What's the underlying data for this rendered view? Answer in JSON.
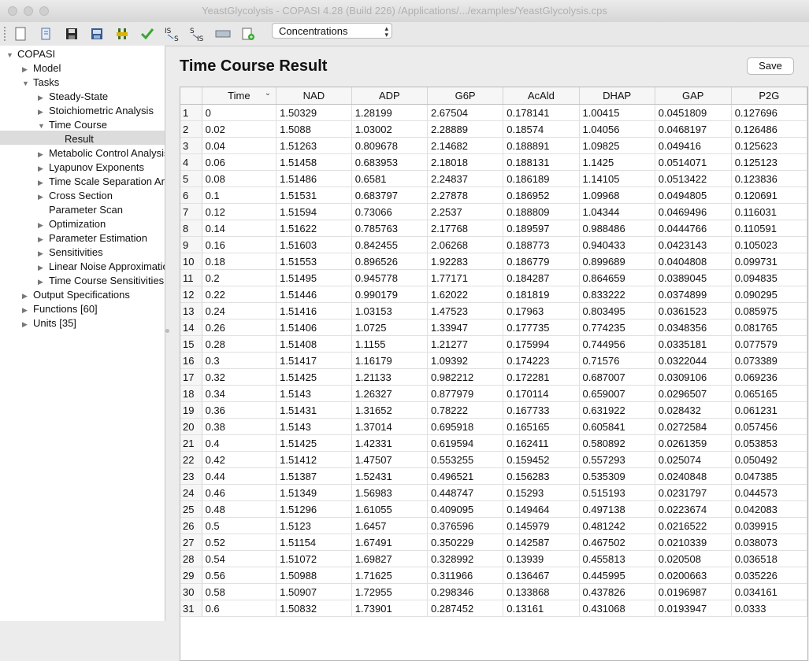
{
  "window": {
    "title": "YeastGlycolysis - COPASI 4.28 (Build 226) /Applications/.../examples/YeastGlycolysis.cps"
  },
  "toolbar": {
    "icons": [
      "new-file-icon",
      "open-file-icon",
      "save-icon",
      "save-as-icon",
      "sliders-icon",
      "check-icon",
      "is-to-s-icon",
      "s-to-is-icon",
      "unit-icon",
      "add-report-icon"
    ],
    "mode_select": "Concentrations"
  },
  "sidebar": {
    "items": [
      {
        "label": "COPASI",
        "level": 0,
        "arrow": "down"
      },
      {
        "label": "Model",
        "level": 1,
        "arrow": "right"
      },
      {
        "label": "Tasks",
        "level": 1,
        "arrow": "down"
      },
      {
        "label": "Steady-State",
        "level": 2,
        "arrow": "right"
      },
      {
        "label": "Stoichiometric Analysis",
        "level": 2,
        "arrow": "right"
      },
      {
        "label": "Time Course",
        "level": 2,
        "arrow": "down"
      },
      {
        "label": "Result",
        "level": 3,
        "arrow": "none",
        "selected": true
      },
      {
        "label": "Metabolic Control Analysis",
        "level": 2,
        "arrow": "right"
      },
      {
        "label": "Lyapunov Exponents",
        "level": 2,
        "arrow": "right"
      },
      {
        "label": "Time Scale Separation Analysis",
        "level": 2,
        "arrow": "right"
      },
      {
        "label": "Cross Section",
        "level": 2,
        "arrow": "right"
      },
      {
        "label": "Parameter Scan",
        "level": 2,
        "arrow": "none"
      },
      {
        "label": "Optimization",
        "level": 2,
        "arrow": "right"
      },
      {
        "label": "Parameter Estimation",
        "level": 2,
        "arrow": "right"
      },
      {
        "label": "Sensitivities",
        "level": 2,
        "arrow": "right"
      },
      {
        "label": "Linear Noise Approximation",
        "level": 2,
        "arrow": "right"
      },
      {
        "label": "Time Course Sensitivities",
        "level": 2,
        "arrow": "right"
      },
      {
        "label": "Output Specifications",
        "level": 1,
        "arrow": "right"
      },
      {
        "label": "Functions [60]",
        "level": 1,
        "arrow": "right"
      },
      {
        "label": "Units [35]",
        "level": 1,
        "arrow": "right"
      }
    ]
  },
  "main": {
    "title": "Time Course Result",
    "save_label": "Save",
    "table": {
      "columns": [
        "Time",
        "NAD",
        "ADP",
        "G6P",
        "AcAld",
        "DHAP",
        "GAP",
        "P2G"
      ],
      "rows": [
        [
          "1",
          "0",
          "1.50329",
          "1.28199",
          "2.67504",
          "0.178141",
          "1.00415",
          "0.0451809",
          "0.127696"
        ],
        [
          "2",
          "0.02",
          "1.5088",
          "1.03002",
          "2.28889",
          "0.18574",
          "1.04056",
          "0.0468197",
          "0.126486"
        ],
        [
          "3",
          "0.04",
          "1.51263",
          "0.809678",
          "2.14682",
          "0.188891",
          "1.09825",
          "0.049416",
          "0.125623"
        ],
        [
          "4",
          "0.06",
          "1.51458",
          "0.683953",
          "2.18018",
          "0.188131",
          "1.1425",
          "0.0514071",
          "0.125123"
        ],
        [
          "5",
          "0.08",
          "1.51486",
          "0.6581",
          "2.24837",
          "0.186189",
          "1.14105",
          "0.0513422",
          "0.123836"
        ],
        [
          "6",
          "0.1",
          "1.51531",
          "0.683797",
          "2.27878",
          "0.186952",
          "1.09968",
          "0.0494805",
          "0.120691"
        ],
        [
          "7",
          "0.12",
          "1.51594",
          "0.73066",
          "2.2537",
          "0.188809",
          "1.04344",
          "0.0469496",
          "0.116031"
        ],
        [
          "8",
          "0.14",
          "1.51622",
          "0.785763",
          "2.17768",
          "0.189597",
          "0.988486",
          "0.0444766",
          "0.110591"
        ],
        [
          "9",
          "0.16",
          "1.51603",
          "0.842455",
          "2.06268",
          "0.188773",
          "0.940433",
          "0.0423143",
          "0.105023"
        ],
        [
          "10",
          "0.18",
          "1.51553",
          "0.896526",
          "1.92283",
          "0.186779",
          "0.899689",
          "0.0404808",
          "0.099731"
        ],
        [
          "11",
          "0.2",
          "1.51495",
          "0.945778",
          "1.77171",
          "0.184287",
          "0.864659",
          "0.0389045",
          "0.094835"
        ],
        [
          "12",
          "0.22",
          "1.51446",
          "0.990179",
          "1.62022",
          "0.181819",
          "0.833222",
          "0.0374899",
          "0.090295"
        ],
        [
          "13",
          "0.24",
          "1.51416",
          "1.03153",
          "1.47523",
          "0.17963",
          "0.803495",
          "0.0361523",
          "0.085975"
        ],
        [
          "14",
          "0.26",
          "1.51406",
          "1.0725",
          "1.33947",
          "0.177735",
          "0.774235",
          "0.0348356",
          "0.081765"
        ],
        [
          "15",
          "0.28",
          "1.51408",
          "1.1155",
          "1.21277",
          "0.175994",
          "0.744956",
          "0.0335181",
          "0.077579"
        ],
        [
          "16",
          "0.3",
          "1.51417",
          "1.16179",
          "1.09392",
          "0.174223",
          "0.71576",
          "0.0322044",
          "0.073389"
        ],
        [
          "17",
          "0.32",
          "1.51425",
          "1.21133",
          "0.982212",
          "0.172281",
          "0.687007",
          "0.0309106",
          "0.069236"
        ],
        [
          "18",
          "0.34",
          "1.5143",
          "1.26327",
          "0.877979",
          "0.170114",
          "0.659007",
          "0.0296507",
          "0.065165"
        ],
        [
          "19",
          "0.36",
          "1.51431",
          "1.31652",
          "0.78222",
          "0.167733",
          "0.631922",
          "0.028432",
          "0.061231"
        ],
        [
          "20",
          "0.38",
          "1.5143",
          "1.37014",
          "0.695918",
          "0.165165",
          "0.605841",
          "0.0272584",
          "0.057456"
        ],
        [
          "21",
          "0.4",
          "1.51425",
          "1.42331",
          "0.619594",
          "0.162411",
          "0.580892",
          "0.0261359",
          "0.053853"
        ],
        [
          "22",
          "0.42",
          "1.51412",
          "1.47507",
          "0.553255",
          "0.159452",
          "0.557293",
          "0.025074",
          "0.050492"
        ],
        [
          "23",
          "0.44",
          "1.51387",
          "1.52431",
          "0.496521",
          "0.156283",
          "0.535309",
          "0.0240848",
          "0.047385"
        ],
        [
          "24",
          "0.46",
          "1.51349",
          "1.56983",
          "0.448747",
          "0.15293",
          "0.515193",
          "0.0231797",
          "0.044573"
        ],
        [
          "25",
          "0.48",
          "1.51296",
          "1.61055",
          "0.409095",
          "0.149464",
          "0.497138",
          "0.0223674",
          "0.042083"
        ],
        [
          "26",
          "0.5",
          "1.5123",
          "1.6457",
          "0.376596",
          "0.145979",
          "0.481242",
          "0.0216522",
          "0.039915"
        ],
        [
          "27",
          "0.52",
          "1.51154",
          "1.67491",
          "0.350229",
          "0.142587",
          "0.467502",
          "0.0210339",
          "0.038073"
        ],
        [
          "28",
          "0.54",
          "1.51072",
          "1.69827",
          "0.328992",
          "0.13939",
          "0.455813",
          "0.020508",
          "0.036518"
        ],
        [
          "29",
          "0.56",
          "1.50988",
          "1.71625",
          "0.311966",
          "0.136467",
          "0.445995",
          "0.0200663",
          "0.035226"
        ],
        [
          "30",
          "0.58",
          "1.50907",
          "1.72955",
          "0.298346",
          "0.133868",
          "0.437826",
          "0.0196987",
          "0.034161"
        ],
        [
          "31",
          "0.6",
          "1.50832",
          "1.73901",
          "0.287452",
          "0.13161",
          "0.431068",
          "0.0193947",
          "0.0333"
        ]
      ]
    }
  }
}
